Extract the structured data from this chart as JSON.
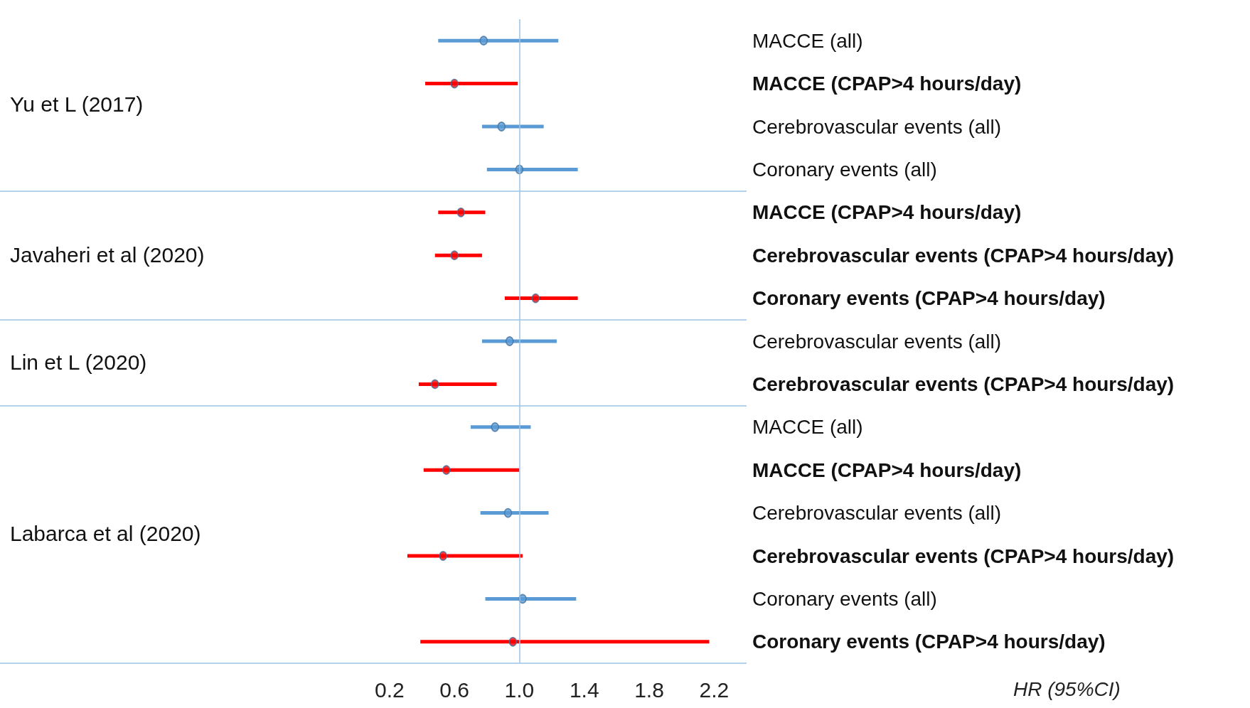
{
  "chart_data": {
    "type": "scatter",
    "orientation": "horizontal",
    "xlabel": "HR (95%CI)",
    "categories": [
      "MACCE (all)",
      "MACCE (CPAP>4 hours/day)",
      "Cerebrovascular events (all)",
      "Coronary events (all)",
      "MACCE (CPAP>4 hours/day)",
      "Cerebrovascular events (CPAP>4 hours/day)",
      "Coronary events (CPAP>4 hours/day)",
      "Cerebrovascular events (all)",
      "Cerebrovascular events (CPAP>4 hours/day)",
      "MACCE (all)",
      "MACCE (CPAP>4 hours/day)",
      "Cerebrovascular events (all)",
      "Cerebrovascular events (CPAP>4 hours/day)",
      "Coronary events (all)",
      "Coronary events (CPAP>4 hours/day)"
    ],
    "series": [
      {
        "color": "#5b9bd5",
        "values": [
          0.78,
          null,
          0.89,
          1.0,
          null,
          null,
          null,
          0.94,
          null,
          0.85,
          null,
          0.93,
          null,
          1.02,
          null
        ],
        "errors": [
          [
            0.5,
            1.24
          ],
          null,
          [
            0.77,
            1.15
          ],
          [
            0.8,
            1.36
          ],
          null,
          null,
          null,
          [
            0.77,
            1.23
          ],
          null,
          [
            0.7,
            1.07
          ],
          null,
          [
            0.76,
            1.18
          ],
          null,
          [
            0.79,
            1.35
          ],
          null
        ]
      },
      {
        "color": "#ff0000",
        "values": [
          null,
          0.6,
          null,
          null,
          0.64,
          0.6,
          1.1,
          null,
          0.48,
          null,
          0.55,
          null,
          0.53,
          null,
          0.96
        ],
        "errors": [
          null,
          [
            0.42,
            0.99
          ],
          null,
          null,
          [
            0.5,
            0.79
          ],
          [
            0.48,
            0.77
          ],
          [
            0.91,
            1.36
          ],
          null,
          [
            0.38,
            0.86
          ],
          null,
          [
            0.41,
            1.0
          ],
          null,
          [
            0.31,
            1.02
          ],
          null,
          [
            0.39,
            2.17
          ]
        ]
      }
    ],
    "xlim": [
      -2.2,
      2.4
    ],
    "xticks": [
      0.2,
      0.6,
      {
        "value": 1,
        "label": "1.0"
      },
      1.4,
      1.8,
      2.2
    ],
    "ref_lines": [
      {
        "axis": "x",
        "value": 1,
        "color": "#9dc3e6"
      }
    ],
    "annotations": [
      "Yu et L (2017)",
      "Javaheri et al (2020)",
      "Lin et L (2020)",
      "Labarca et al (2020)"
    ],
    "marker": "circle",
    "grid": false
  }
}
